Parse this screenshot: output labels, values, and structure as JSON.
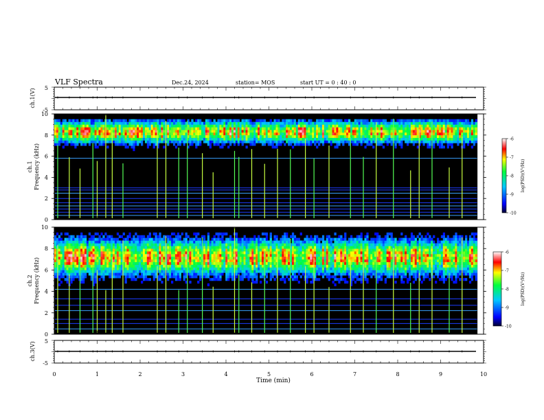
{
  "header": {
    "title": "VLF Spectra",
    "date": "Dec.24, 2024",
    "station": "station= MOS",
    "start_ut": "start  UT =   0 : 40 : 0"
  },
  "colors": {
    "spec_low": "#000000",
    "spec_mid": "#0044ff",
    "spec_high": "#ff0000"
  },
  "chart_data": {
    "type": "heatmap",
    "xlabel": "Time  (min)",
    "x_ticks": [
      "0",
      "1",
      "2",
      "3",
      "4",
      "5",
      "6",
      "7",
      "8",
      "9",
      "10"
    ],
    "xlim": [
      0,
      10
    ],
    "data_end_min": 9.85,
    "panels": [
      {
        "id": "ch1-waveform",
        "kind": "waveform",
        "ylabel": "ch.1(V)",
        "ylim": [
          -5,
          5
        ],
        "y_ticks": [
          "5",
          "-5"
        ],
        "baseline": 0
      },
      {
        "id": "ch1-spectrogram",
        "kind": "spectrogram",
        "ylabel": "ch.1\nFrequency  (kHz)",
        "ylim": [
          0,
          10
        ],
        "y_ticks": [
          "0",
          "2",
          "4",
          "6",
          "8",
          "10"
        ],
        "band_center_khz": 8.3,
        "band_spread_khz": 1.0,
        "line_freqs_khz": [
          0.4,
          0.7,
          1.0,
          1.3,
          1.6,
          2.0,
          2.5,
          2.8,
          3.0,
          5.8
        ],
        "colorbar": {
          "label": "log(PSD)(V²/Hz)",
          "ticks": [
            "-6",
            "-7",
            "-8",
            "-9",
            "-10"
          ],
          "range": [
            -10,
            -6
          ]
        }
      },
      {
        "id": "ch2-spectrogram",
        "kind": "spectrogram",
        "ylabel": "ch.2\nFrequency  (kHz)",
        "ylim": [
          0,
          10
        ],
        "y_ticks": [
          "0",
          "2",
          "4",
          "6",
          "8",
          "10"
        ],
        "band_center_khz": 7.2,
        "band_spread_khz": 1.6,
        "line_freqs_khz": [
          0.5,
          1.0,
          1.4,
          2.2,
          2.7,
          3.3,
          4.2
        ],
        "colorbar": {
          "label": "log(PSD)(V²/Hz)",
          "ticks": [
            "-6",
            "-7",
            "-8",
            "-9",
            "-10"
          ],
          "range": [
            -10,
            -6
          ]
        }
      },
      {
        "id": "ch3-waveform",
        "kind": "waveform",
        "ylabel": "ch.3(V)",
        "ylim": [
          -5,
          5
        ],
        "y_ticks": [
          "5",
          "-5"
        ],
        "baseline": 0
      }
    ],
    "sferic_times_min": [
      0.08,
      0.35,
      0.6,
      0.9,
      1.0,
      1.2,
      1.35,
      1.6,
      2.4,
      2.6,
      2.9,
      3.1,
      3.45,
      3.7,
      4.2,
      4.3,
      4.6,
      4.9,
      5.2,
      5.5,
      5.85,
      6.05,
      6.4,
      6.9,
      7.2,
      7.5,
      7.9,
      8.3,
      8.5,
      8.8,
      9.2,
      9.5
    ]
  }
}
